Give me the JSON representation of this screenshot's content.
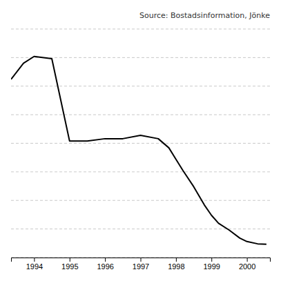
{
  "chart_data": {
    "type": "line",
    "annotation": "Source: Bostadsinformation, Jönke",
    "x": [
      1993.35,
      1993.7,
      1994.0,
      1994.5,
      1995.0,
      1995.5,
      1996.0,
      1996.5,
      1997.0,
      1997.5,
      1997.8,
      1998.0,
      1998.2,
      1998.5,
      1998.8,
      1999.0,
      1999.2,
      1999.5,
      1999.8,
      2000.0,
      2000.3,
      2000.55
    ],
    "values": [
      7.8,
      8.5,
      8.8,
      8.7,
      5.1,
      5.1,
      5.2,
      5.2,
      5.35,
      5.2,
      4.8,
      4.3,
      3.8,
      3.1,
      2.3,
      1.85,
      1.5,
      1.2,
      0.85,
      0.7,
      0.6,
      0.58
    ],
    "color": "#000000",
    "xlim": [
      1993.35,
      2000.65
    ],
    "xticks": [
      1994,
      1995,
      1996,
      1997,
      1998,
      1999,
      2000
    ],
    "ylim": [
      0.0,
      10.0
    ],
    "yticks": [
      0.0,
      1.25,
      2.5,
      3.75,
      5.0,
      6.25,
      7.5,
      8.75,
      10.0
    ],
    "grid": true,
    "tick_labels": "x"
  }
}
